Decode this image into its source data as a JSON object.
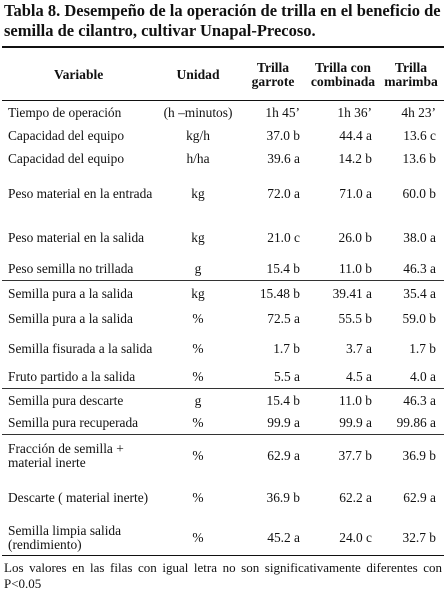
{
  "title": "Tabla 8. Desempeño de la operación de trilla en el beneficio de semilla de cilantro, cultivar Unapal-Precoso.",
  "headers": {
    "variable": "Variable",
    "unidad": "Unidad",
    "col1": "Trilla garrote",
    "col2": "Trilla con combinada",
    "col3": "Trilla marimba"
  },
  "rows": [
    {
      "variable": "Tiempo de operación",
      "unidad": "(h –minutos)",
      "garrote": "1h 45’",
      "combinada": "1h 36’",
      "marimba": "4h 23’"
    },
    {
      "variable": "Capacidad del equipo",
      "unidad": "kg/h",
      "garrote": "37.0 b",
      "combinada": "44.4 a",
      "marimba": "13.6 c"
    },
    {
      "variable": "Capacidad del equipo",
      "unidad": "h/ha",
      "garrote": "39.6 a",
      "combinada": "14.2 b",
      "marimba": "13.6 b"
    },
    {
      "variable": "Peso material en la entrada",
      "unidad": "kg",
      "garrote": "72.0 a",
      "combinada": "71.0 a",
      "marimba": "60.0 b"
    },
    {
      "variable": "Peso material en la salida",
      "unidad": "kg",
      "garrote": "21.0 c",
      "combinada": "26.0 b",
      "marimba": "38.0 a"
    },
    {
      "variable": "Peso semilla no trillada",
      "unidad": "g",
      "garrote": "15.4 b",
      "combinada": "11.0 b",
      "marimba": "46.3 a"
    },
    {
      "variable": "Semilla pura a la salida",
      "unidad": "kg",
      "garrote": "15.48 b",
      "combinada": "39.41 a",
      "marimba": "35.4 a"
    },
    {
      "variable": "Semilla pura a la salida",
      "unidad": "%",
      "garrote": "72.5 a",
      "combinada": "55.5 b",
      "marimba": "59.0 b"
    },
    {
      "variable": "Semilla fisurada a la salida",
      "unidad": "%",
      "garrote": "1.7 b",
      "combinada": "3.7 a",
      "marimba": "1.7 b"
    },
    {
      "variable": "Fruto partido a la salida",
      "unidad": "%",
      "garrote": "5.5 a",
      "combinada": "4.5 a",
      "marimba": "4.0 a"
    },
    {
      "variable": "Semilla pura descarte",
      "unidad": "g",
      "garrote": "15.4 b",
      "combinada": "11.0 b",
      "marimba": "46.3 a"
    },
    {
      "variable": "Semilla pura recuperada",
      "unidad": "%",
      "garrote": "99.9 a",
      "combinada": "99.9 a",
      "marimba": "99.86 a"
    },
    {
      "variable": "Fracción de semilla + material inerte",
      "unidad": "%",
      "garrote": "62.9 a",
      "combinada": "37.7 b",
      "marimba": "36.9 b"
    },
    {
      "variable": "Descarte ( material inerte)",
      "unidad": "%",
      "garrote": "36.9 b",
      "combinada": "62.2 a",
      "marimba": "62.9 a"
    },
    {
      "variable": "Semilla limpia salida (rendimiento)",
      "unidad": "%",
      "garrote": "45.2 a",
      "combinada": "24.0 c",
      "marimba": "32.7 b"
    }
  ],
  "note": "Los valores en las filas con  igual letra no  son significativamente diferentes con P<0.05"
}
